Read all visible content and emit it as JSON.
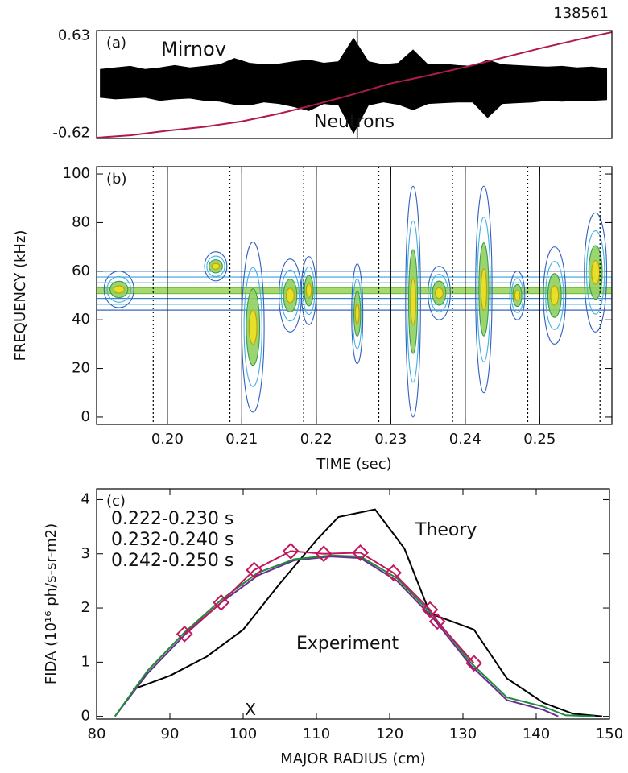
{
  "chart_data": [
    {
      "type": "timeseries",
      "panel_label": "(a)",
      "shot": "138561",
      "xlim": [
        0.1905,
        0.2597
      ],
      "ylim": [
        -0.69,
        0.7
      ],
      "yticks": [
        0.63,
        -0.62
      ],
      "vlines": [
        0.2255
      ],
      "series": [
        {
          "name": "Mirnov",
          "color": "#000000",
          "x": [
            0.191,
            0.193,
            0.195,
            0.197,
            0.199,
            0.201,
            0.203,
            0.205,
            0.207,
            0.209,
            0.211,
            0.213,
            0.215,
            0.217,
            0.219,
            0.221,
            0.223,
            0.225,
            0.227,
            0.229,
            0.231,
            0.233,
            0.235,
            0.237,
            0.239,
            0.241,
            0.243,
            0.245,
            0.247,
            0.249,
            0.251,
            0.253,
            0.255,
            0.257,
            0.259
          ],
          "values": [
            0.2,
            0.22,
            0.24,
            0.2,
            0.22,
            0.25,
            0.22,
            0.24,
            0.26,
            0.34,
            0.28,
            0.26,
            0.27,
            0.3,
            0.32,
            0.28,
            0.3,
            0.6,
            0.3,
            0.26,
            0.28,
            0.45,
            0.26,
            0.27,
            0.25,
            0.24,
            0.32,
            0.26,
            0.25,
            0.24,
            0.23,
            0.24,
            0.22,
            0.23,
            0.21
          ],
          "lower": [
            -0.16,
            -0.18,
            -0.17,
            -0.16,
            -0.2,
            -0.18,
            -0.17,
            -0.2,
            -0.21,
            -0.25,
            -0.26,
            -0.22,
            -0.24,
            -0.28,
            -0.33,
            -0.24,
            -0.26,
            -0.62,
            -0.26,
            -0.22,
            -0.25,
            -0.32,
            -0.24,
            -0.23,
            -0.22,
            -0.22,
            -0.42,
            -0.24,
            -0.23,
            -0.22,
            -0.2,
            -0.21,
            -0.2,
            -0.2,
            -0.19
          ]
        },
        {
          "name": "Neutrons",
          "color": "#b01a4a",
          "x": [
            0.1905,
            0.195,
            0.2,
            0.205,
            0.21,
            0.215,
            0.22,
            0.225,
            0.23,
            0.235,
            0.24,
            0.245,
            0.25,
            0.255,
            0.2597
          ],
          "values": [
            -0.68,
            -0.65,
            -0.59,
            -0.54,
            -0.47,
            -0.37,
            -0.25,
            -0.12,
            0.02,
            0.12,
            0.23,
            0.35,
            0.47,
            0.58,
            0.68
          ]
        }
      ]
    },
    {
      "type": "spectrogram",
      "panel_label": "(b)",
      "xlabel": "TIME (sec)",
      "ylabel": "FREQUENCY (kHz)",
      "xlim": [
        0.1905,
        0.2597
      ],
      "ylim": [
        -3,
        103
      ],
      "xticks": [
        {
          "value": 0.2,
          "label": "0.20"
        },
        0.21,
        0.22,
        0.23,
        0.24,
        0.25
      ],
      "yticks": [
        0,
        20,
        40,
        60,
        80,
        100
      ],
      "solid_lines": [
        0.2,
        0.21,
        0.22,
        0.23,
        0.24,
        0.25
      ],
      "dotted_lines": [
        0.1981,
        0.2084,
        0.2183,
        0.2284,
        0.2383,
        0.2484,
        0.2581
      ],
      "band": {
        "low": 44,
        "high": 60
      },
      "bursts": [
        {
          "x": 0.1935,
          "low": 45,
          "high": 60,
          "width": 0.004
        },
        {
          "x": 0.2065,
          "low": 56,
          "high": 68,
          "width": 0.003
        },
        {
          "x": 0.2115,
          "low": 2,
          "high": 72,
          "width": 0.003
        },
        {
          "x": 0.2165,
          "low": 35,
          "high": 65,
          "width": 0.003
        },
        {
          "x": 0.219,
          "low": 38,
          "high": 66,
          "width": 0.002
        },
        {
          "x": 0.2255,
          "low": 22,
          "high": 63,
          "width": 0.0015
        },
        {
          "x": 0.233,
          "low": 0,
          "high": 95,
          "width": 0.002
        },
        {
          "x": 0.2365,
          "low": 40,
          "high": 62,
          "width": 0.003
        },
        {
          "x": 0.2425,
          "low": 10,
          "high": 95,
          "width": 0.0022
        },
        {
          "x": 0.247,
          "low": 40,
          "high": 60,
          "width": 0.002
        },
        {
          "x": 0.252,
          "low": 30,
          "high": 70,
          "width": 0.003
        },
        {
          "x": 0.2575,
          "low": 35,
          "high": 84,
          "width": 0.003
        }
      ]
    },
    {
      "type": "line",
      "panel_label": "(c)",
      "xlabel": "MAJOR RADIUS (cm)",
      "ylabel": "FIDA (10¹⁶ ph/s-sr-m2)",
      "xlim": [
        80,
        150
      ],
      "ylim": [
        -0.05,
        4.2
      ],
      "xticks": [
        80,
        90,
        100,
        110,
        120,
        130,
        140,
        150
      ],
      "yticks": [
        0,
        1,
        2,
        3,
        4
      ],
      "annotation": "Experiment",
      "marker_text": {
        "text": "X",
        "x": 101,
        "y": 0.05
      },
      "theory": {
        "name": "Theory",
        "color": "#000000",
        "x": [
          85,
          90,
          95,
          100,
          105,
          110,
          113,
          118,
          122,
          125.5,
          131.5,
          136,
          141,
          145,
          149
        ],
        "values": [
          0.5,
          0.75,
          1.1,
          1.6,
          2.45,
          3.25,
          3.68,
          3.82,
          3.1,
          1.9,
          1.6,
          0.7,
          0.25,
          0.05,
          0.0
        ]
      },
      "series": [
        {
          "name": "0.222-0.230 s",
          "color": "#c2185b",
          "marker": "diamond",
          "x": [
            92,
            97,
            101.5,
            106.5,
            111,
            116,
            120.5,
            125.5,
            126.5,
            131.5
          ],
          "values": [
            1.52,
            2.1,
            2.7,
            3.05,
            3.0,
            3.02,
            2.65,
            1.97,
            1.75,
            0.98
          ]
        },
        {
          "name": "0.232-0.240 s",
          "color": "#1e8a3c",
          "x": [
            82.5,
            87,
            92,
            97,
            102,
            107,
            112,
            116,
            121,
            126,
            131,
            136,
            141,
            144,
            148
          ],
          "values": [
            0,
            0.85,
            1.55,
            2.15,
            2.65,
            2.9,
            2.97,
            2.95,
            2.55,
            1.85,
            1.0,
            0.35,
            0.18,
            0.02,
            0.0
          ]
        },
        {
          "name": "0.242-0.250 s",
          "color": "#6b2c91",
          "x": [
            82.5,
            87,
            92,
            97,
            102,
            107,
            112,
            116,
            121,
            126,
            131,
            136,
            141,
            143
          ],
          "values": [
            0,
            0.8,
            1.5,
            2.1,
            2.6,
            2.88,
            2.95,
            2.92,
            2.5,
            1.8,
            0.95,
            0.3,
            0.12,
            0.0
          ]
        }
      ]
    }
  ]
}
